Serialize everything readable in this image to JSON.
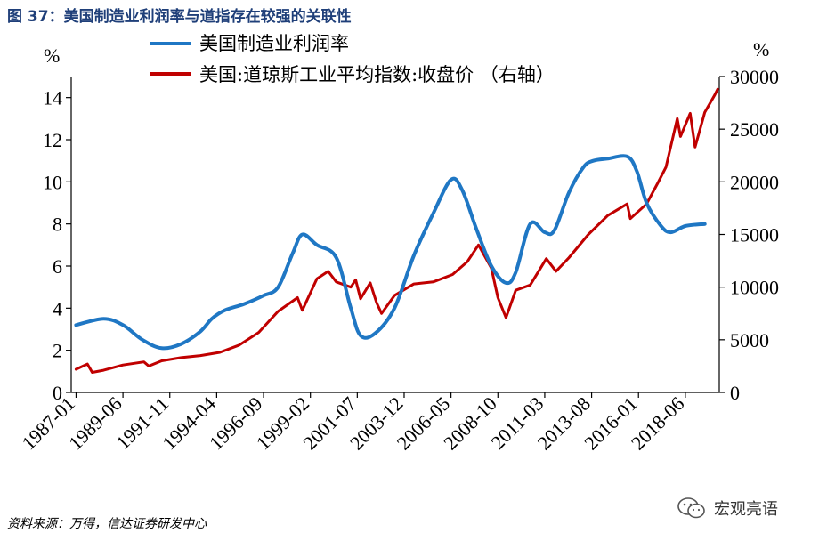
{
  "figure_title": "图 37：美国制造业利润率与道指存在较强的关联性",
  "source_note": "资料来源：万得，信达证券研发中心",
  "watermark": {
    "text": "宏观亮语",
    "icon": "wechat-icon"
  },
  "colors": {
    "blue": "#1f77c4",
    "red": "#c00000",
    "title": "#1f3f79"
  },
  "chart_data": {
    "type": "line",
    "title": "",
    "left_axis": {
      "unit": "%",
      "ylim": [
        0,
        15
      ],
      "ticks": [
        "0",
        "2",
        "4",
        "6",
        "8",
        "10",
        "12",
        "14"
      ]
    },
    "right_axis": {
      "unit": "%",
      "ylim": [
        0,
        30000
      ],
      "ticks": [
        "0",
        "5000",
        "10000",
        "15000",
        "20000",
        "25000",
        "30000"
      ]
    },
    "x_ticks": [
      "1987-01",
      "1989-06",
      "1991-11",
      "1994-04",
      "1996-09",
      "1999-02",
      "2001-07",
      "2003-12",
      "2006-05",
      "2008-10",
      "2011-03",
      "2013-08",
      "2016-01",
      "2018-06"
    ],
    "x_range": [
      "1986-10",
      "2020-03"
    ],
    "legend_placement": "top",
    "grid": false,
    "series": [
      {
        "name": "美国制造业利润率",
        "axis": "left",
        "color": "#1f77c4",
        "x": [
          "1987-01",
          "1988-06",
          "1989-06",
          "1990-06",
          "1991-06",
          "1992-06",
          "1993-06",
          "1994-01",
          "1994-09",
          "1995-09",
          "1996-09",
          "1997-06",
          "1998-03",
          "1998-09",
          "1999-06",
          "2000-06",
          "2001-03",
          "2001-09",
          "2002-06",
          "2003-06",
          "2004-06",
          "2005-06",
          "2006-05",
          "2006-12",
          "2007-09",
          "2008-06",
          "2009-03",
          "2009-09",
          "2010-06",
          "2011-03",
          "2011-09",
          "2012-06",
          "2013-03",
          "2013-09",
          "2014-06",
          "2015-06",
          "2015-12",
          "2016-06",
          "2017-03",
          "2017-09",
          "2018-06",
          "2019-06"
        ],
        "values": [
          3.2,
          3.5,
          3.2,
          2.5,
          2.1,
          2.3,
          2.9,
          3.5,
          3.9,
          4.2,
          4.6,
          5.0,
          6.6,
          7.5,
          7.0,
          6.4,
          4.0,
          2.7,
          2.8,
          4.0,
          6.5,
          8.5,
          10.1,
          9.6,
          7.7,
          6.0,
          5.2,
          5.7,
          8.0,
          7.6,
          7.7,
          9.5,
          10.7,
          11.0,
          11.1,
          11.2,
          10.5,
          9.0,
          7.9,
          7.6,
          7.9,
          8.0
        ]
      },
      {
        "name": "美国:道琼斯工业平均指数:收盘价 （右轴）",
        "axis": "right",
        "color": "#c00000",
        "x": [
          "1987-01",
          "1987-08",
          "1987-11",
          "1988-06",
          "1989-06",
          "1990-07",
          "1990-10",
          "1991-06",
          "1992-06",
          "1993-06",
          "1994-06",
          "1995-06",
          "1996-06",
          "1997-06",
          "1998-06",
          "1998-09",
          "1999-06",
          "2000-01",
          "2000-06",
          "2001-03",
          "2001-06",
          "2001-09",
          "2002-03",
          "2002-07",
          "2002-10",
          "2003-06",
          "2004-06",
          "2005-06",
          "2006-06",
          "2007-03",
          "2007-10",
          "2008-06",
          "2008-10",
          "2009-03",
          "2009-09",
          "2010-06",
          "2011-04",
          "2011-10",
          "2012-06",
          "2013-06",
          "2014-06",
          "2015-06",
          "2015-08",
          "2016-06",
          "2017-01",
          "2017-06",
          "2018-01",
          "2018-03",
          "2018-09",
          "2018-12",
          "2019-06",
          "2019-12",
          "2020-02"
        ],
        "values": [
          2200,
          2700,
          1900,
          2100,
          2600,
          2900,
          2500,
          3000,
          3300,
          3500,
          3800,
          4500,
          5700,
          7700,
          9000,
          7800,
          10800,
          11500,
          10500,
          10000,
          10700,
          8900,
          10400,
          8500,
          7500,
          9200,
          10300,
          10500,
          11200,
          12400,
          14000,
          11800,
          9000,
          7100,
          9700,
          10200,
          12700,
          11500,
          12800,
          15000,
          16800,
          17900,
          16500,
          17900,
          19900,
          21400,
          26000,
          24300,
          26500,
          23300,
          26600,
          28200,
          28800
        ]
      }
    ]
  }
}
